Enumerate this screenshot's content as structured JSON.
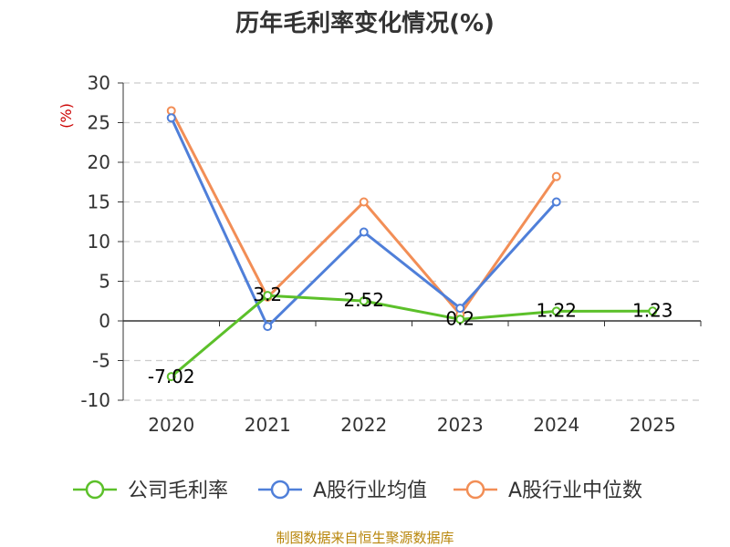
{
  "chart_data": {
    "type": "line",
    "title": "历年毛利率变化情况(%)",
    "ylabel": "(%)",
    "categories": [
      "2020",
      "2021",
      "2022",
      "2023",
      "2024",
      "2025"
    ],
    "yticks": [
      "30",
      "25",
      "20",
      "15",
      "10",
      "5",
      "0",
      "-5",
      "-10"
    ],
    "ylim": [
      -10,
      30
    ],
    "grid": true,
    "legend_position": "bottom",
    "series": [
      {
        "name": "公司毛利率",
        "color": "#5cc02a",
        "values": [
          -7.02,
          3.2,
          2.52,
          0.2,
          1.22,
          1.23
        ],
        "labels": [
          "-7.02",
          "3.2",
          "2.52",
          "0.2",
          "1.22",
          "1.23"
        ]
      },
      {
        "name": "A股行业均值",
        "color": "#4f7fd9",
        "values": [
          25.6,
          -0.7,
          11.2,
          1.6,
          15.0,
          null
        ]
      },
      {
        "name": "A股行业中位数",
        "color": "#f28e56",
        "values": [
          26.5,
          3.0,
          15.0,
          0.8,
          18.2,
          null
        ]
      }
    ],
    "source": "制图数据来自恒生聚源数据库"
  }
}
